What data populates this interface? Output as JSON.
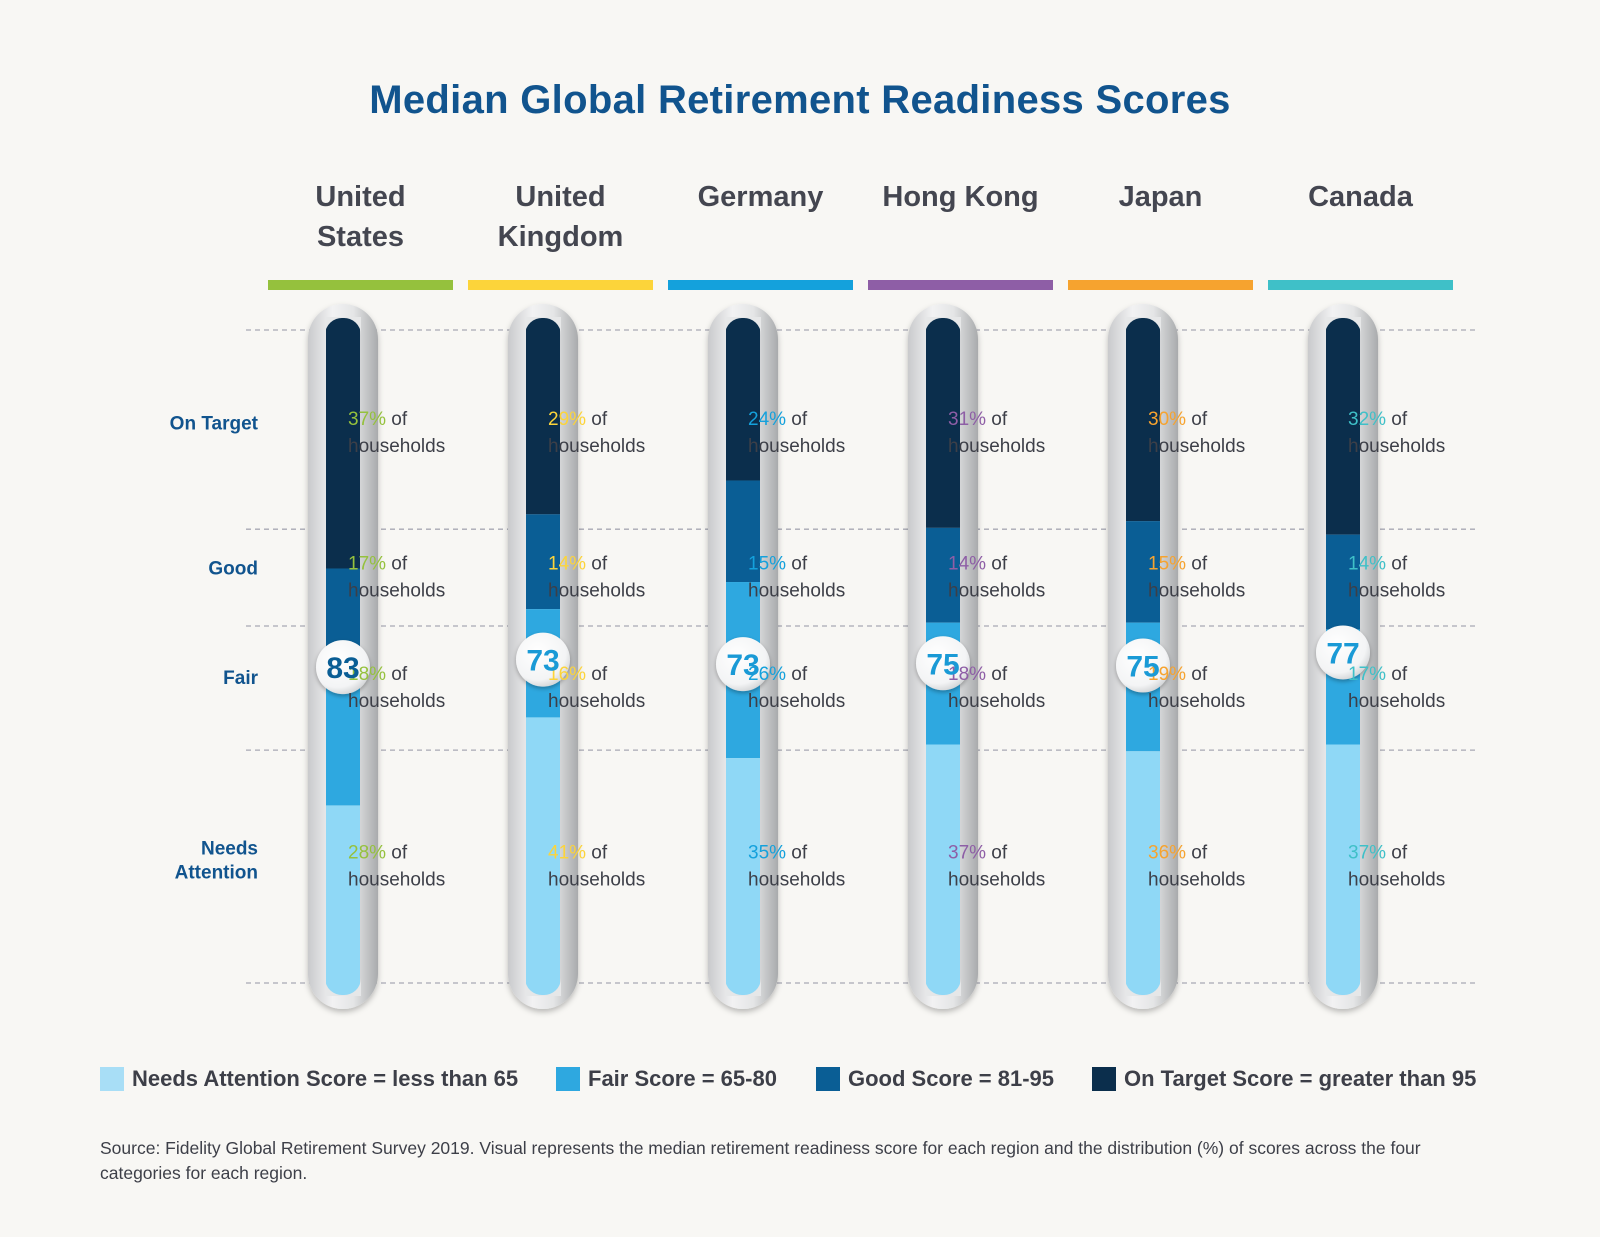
{
  "chart_data": {
    "type": "bar",
    "title": "Median Global Retirement Readiness Scores",
    "categories": [
      "United States",
      "United Kingdom",
      "Germany",
      "Hong Kong",
      "Japan",
      "Canada"
    ],
    "category_lines": [
      [
        "United",
        "States"
      ],
      [
        "United",
        "Kingdom"
      ],
      [
        "Germany"
      ],
      [
        "Hong Kong"
      ],
      [
        "Japan"
      ],
      [
        "Canada"
      ]
    ],
    "median_scores": [
      83,
      73,
      73,
      75,
      75,
      77
    ],
    "region_colors": [
      "#95c13d",
      "#fcd43a",
      "#14a1dc",
      "#8e5ea6",
      "#f6a32f",
      "#3fc0c8"
    ],
    "row_labels": [
      [
        "On Target"
      ],
      [
        "Good"
      ],
      [
        "Fair"
      ],
      [
        "Needs",
        "Attention"
      ]
    ],
    "unit_text": "of",
    "households_text": "households",
    "series": [
      {
        "name": "On Target",
        "color": "#0b2e4c",
        "values": [
          37,
          29,
          24,
          31,
          30,
          32
        ],
        "value_labels": [
          "37%",
          "29%",
          "24%",
          "31%",
          "30%",
          "32%"
        ]
      },
      {
        "name": "Good",
        "color": "#0a5e95",
        "values": [
          17,
          14,
          15,
          14,
          15,
          14
        ],
        "value_labels": [
          "17%",
          "14%",
          "15%",
          "14%",
          "15%",
          "14%"
        ]
      },
      {
        "name": "Fair",
        "color": "#2ea8e0",
        "values": [
          18,
          16,
          26,
          18,
          19,
          17
        ],
        "value_labels": [
          "18%",
          "16%",
          "26%",
          "18%",
          "19%",
          "17%"
        ]
      },
      {
        "name": "Needs Attention",
        "color": "#8fd8f6",
        "values": [
          28,
          41,
          35,
          37,
          36,
          37
        ],
        "value_labels": [
          "28%",
          "41%",
          "35%",
          "37%",
          "36%",
          "37%"
        ]
      }
    ]
  },
  "legend": [
    {
      "label": "Needs Attention Score = less than 65",
      "color": "#a8def6"
    },
    {
      "label": "Fair Score = 65-80",
      "color": "#2ea8e0"
    },
    {
      "label": "Good Score = 81-95",
      "color": "#0a5e95"
    },
    {
      "label": "On Target Score = greater than 95",
      "color": "#0b2e4c"
    }
  ],
  "source": "Source: Fidelity Global Retirement Survey 2019. Visual represents the median retirement readiness score for each region and the distribution (%) of scores across the four categories for each region.",
  "colors": {
    "title": "#11548e",
    "row_label": "#11548e",
    "text": "#3d3f48",
    "bubble_text": "#1a9ad6"
  }
}
